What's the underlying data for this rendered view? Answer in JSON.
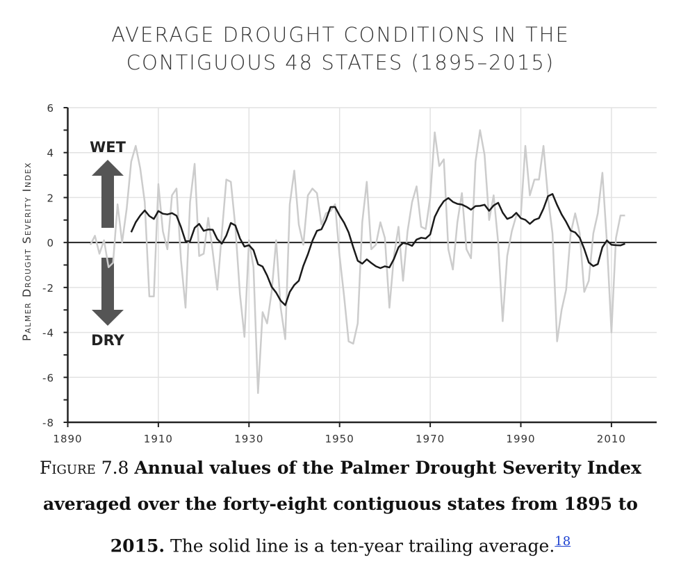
{
  "chart_data": {
    "type": "line",
    "title_lines": [
      "AVERAGE DROUGHT CONDITIONS IN THE",
      "CONTIGUOUS 48 STATES (1895–2015)"
    ],
    "ylabel": "Palmer Drought Severity Index",
    "xlabel": "",
    "xlim": [
      1890,
      2020
    ],
    "ylim": [
      -8,
      6
    ],
    "x_ticks": [
      1890,
      1910,
      1930,
      1950,
      1970,
      1990,
      2010
    ],
    "y_ticks": [
      6,
      4,
      2,
      0,
      -2,
      -4,
      -6,
      -8
    ],
    "grid": true,
    "annotations": {
      "wet": "WET",
      "dry": "DRY"
    },
    "series": [
      {
        "name": "Annual PDSI",
        "color": "#cccccc",
        "start_year": 1895,
        "values": [
          -0.1,
          0.3,
          -0.5,
          0.1,
          -1.1,
          -0.9,
          1.7,
          0.0,
          1.5,
          3.6,
          4.3,
          3.3,
          1.8,
          -2.4,
          -2.4,
          2.6,
          0.5,
          -0.3,
          2.1,
          2.4,
          -0.8,
          -2.9,
          1.8,
          3.5,
          -0.6,
          -0.5,
          1.1,
          -0.4,
          -2.1,
          0.4,
          2.8,
          2.7,
          0.7,
          -2.3,
          -4.2,
          0.1,
          -1.1,
          -6.7,
          -3.1,
          -3.6,
          -2.2,
          0.1,
          -2.9,
          -4.3,
          1.7,
          3.2,
          0.8,
          -0.1,
          2.1,
          2.4,
          2.2,
          0.8,
          1.3,
          1.4,
          1.7,
          -0.6,
          -2.4,
          -4.4,
          -4.5,
          -3.6,
          0.9,
          2.7,
          -0.3,
          -0.1,
          0.9,
          0.2,
          -2.9,
          -0.6,
          0.7,
          -1.7,
          0.5,
          1.8,
          2.5,
          0.7,
          0.6,
          2.0,
          4.9,
          3.4,
          3.7,
          -0.3,
          -1.2,
          0.9,
          2.2,
          -0.3,
          -0.7,
          3.6,
          5.0,
          3.9,
          1.0,
          2.1,
          0.0,
          -3.5,
          -0.6,
          0.5,
          1.2,
          1.2,
          4.3,
          2.1,
          2.8,
          2.8,
          4.3,
          2.0,
          0.4,
          -4.4,
          -3.0,
          -2.1,
          0.4,
          1.3,
          0.4,
          -2.2,
          -1.7,
          0.4,
          1.3,
          3.1,
          0.0,
          -4.0,
          0.2,
          1.2,
          1.2
        ]
      },
      {
        "name": "Ten-year trailing average",
        "color": "#1a1a1a",
        "window": 10
      }
    ]
  },
  "caption": {
    "figure_label": "Figure 7.8",
    "bold_text": "Annual values of the Palmer Drought Severity Index averaged over the forty-eight contiguous states from 1895 to 2015.",
    "text": " The solid line is a ten-year trailing average.",
    "footnote": "18"
  }
}
